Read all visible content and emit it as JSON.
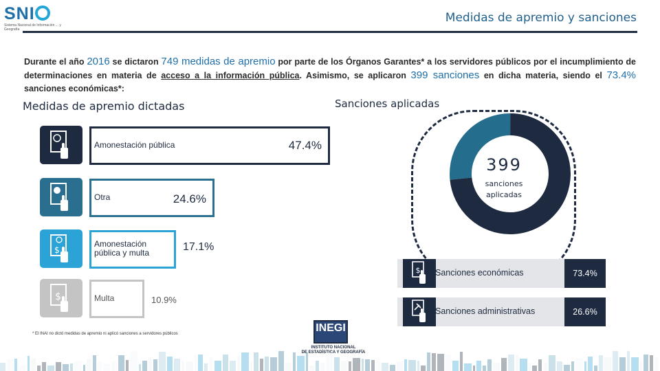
{
  "logo": {
    "word": "SNI",
    "word_end": "",
    "sub": "Sistema Nacional de Información ... y Geografía"
  },
  "page_title": "Medidas de apremio y sanciones",
  "intro": {
    "p1": "Durante el año",
    "year": "2016",
    "p2": "se dictaron",
    "medidas": "749 medidas de apremio",
    "p3": "por parte de los Órganos Garantes* a los servidores públicos por el incumplimiento de determinaciones en materia de",
    "link": "acceso a la información pública",
    "p4": ". Asimismo, se aplicaron",
    "sanciones": "399 sanciones",
    "p5": "en dicha materia, siendo el",
    "pct": "73.4%",
    "p6": "sanciones económicas*:"
  },
  "left_section": {
    "title": "Medidas de apremio dictadas",
    "bars": [
      {
        "label": "Amonestación pública",
        "value": "47.4%",
        "pct": 47.4,
        "color": "#1d2a3f",
        "icon": "document-globe-hand-icon"
      },
      {
        "label": "Otra",
        "value": "24.6%",
        "pct": 24.6,
        "color": "#2a6f8f",
        "icon": "document-dot-hand-icon"
      },
      {
        "label": "Amonestación pública y multa",
        "value": "17.1%",
        "pct": 17.1,
        "color": "#2ba3d6",
        "icon": "document-globe-dollar-hand-icon"
      },
      {
        "label": "Multa",
        "value": "10.9%",
        "pct": 10.9,
        "color": "#c4c4c4",
        "icon": "document-dollar-hand-icon"
      }
    ]
  },
  "right_section": {
    "title": "Sanciones aplicadas",
    "total": "399",
    "total_label": "sanciones aplicadas",
    "chart_data": {
      "type": "pie",
      "title": "Sanciones aplicadas",
      "categories": [
        "Sanciones económicas",
        "Sanciones administrativas"
      ],
      "values": [
        73.4,
        26.6
      ],
      "colors": [
        "#1d2a3f",
        "#256d8d"
      ]
    },
    "legend": [
      {
        "label": "Sanciones económicas",
        "value": "73.4%",
        "icon": "document-dollar-hand-icon"
      },
      {
        "label": "Sanciones administrativas",
        "value": "26.6%",
        "icon": "document-gavel-hand-icon"
      }
    ]
  },
  "footnote": "* El INAI no dictó medidas de apremio ni aplicó sanciones a servidores públicos",
  "inegi": {
    "acronym": "INEGI",
    "line1": "INSTITUTO NACIONAL",
    "line2": "DE ESTADÍSTICA Y GEOGRAFÍA"
  }
}
